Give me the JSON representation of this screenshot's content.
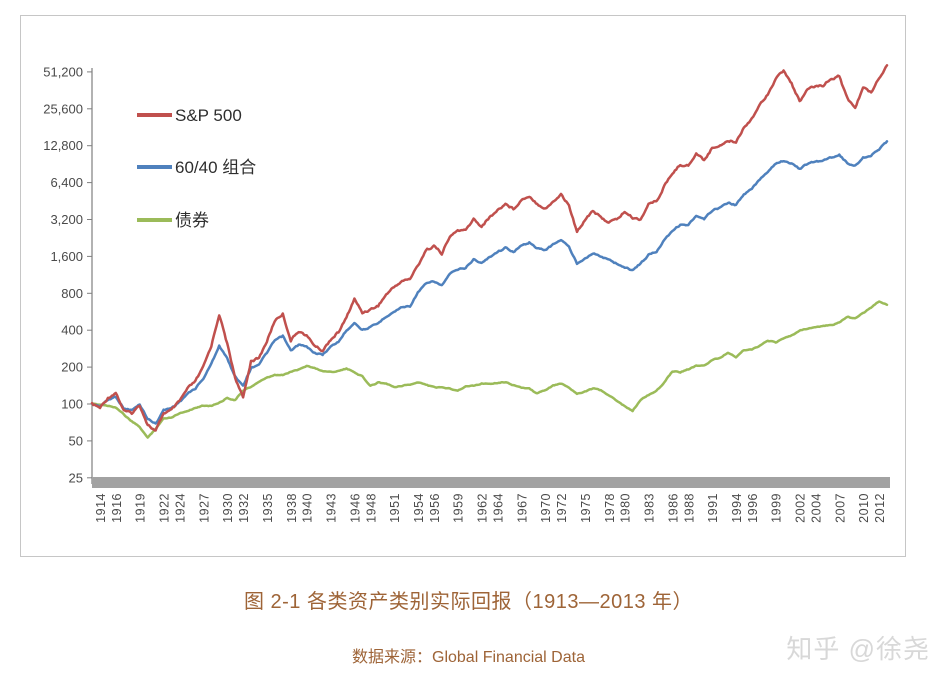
{
  "figure": {
    "title": "图 2-1 各类资产类别实际回报（1913—2013 年）",
    "source": "数据来源：Global Financial Data",
    "watermark": "知乎 @徐尧",
    "text_color": "#9E6437",
    "watermark_color": "#D8D8D8"
  },
  "chart_data": {
    "type": "line",
    "title": "各类资产类别实际回报 (1913—2013)",
    "y_scale": "log2",
    "ylim": [
      25,
      102400
    ],
    "grid": false,
    "legend_position": "upper-left-inside",
    "x_start": 1913,
    "x_end": 2013,
    "x_step": 1,
    "colors": {
      "axis": "#7f7f7f",
      "x_axis_bar": "#A2A2A2"
    },
    "y_ticks": [
      {
        "value": 51200,
        "label": "51,200"
      },
      {
        "value": 25600,
        "label": "25,600"
      },
      {
        "value": 12800,
        "label": "12,800"
      },
      {
        "value": 6400,
        "label": "6,400"
      },
      {
        "value": 3200,
        "label": "3,200"
      },
      {
        "value": 1600,
        "label": "1,600"
      },
      {
        "value": 800,
        "label": "800"
      },
      {
        "value": 400,
        "label": "400"
      },
      {
        "value": 200,
        "label": "200"
      },
      {
        "value": 100,
        "label": "100"
      },
      {
        "value": 50,
        "label": "50"
      },
      {
        "value": 25,
        "label": "25"
      }
    ],
    "x_ticks": [
      1914,
      1916,
      1919,
      1922,
      1924,
      1927,
      1930,
      1932,
      1935,
      1938,
      1940,
      1943,
      1946,
      1948,
      1951,
      1954,
      1956,
      1959,
      1962,
      1964,
      1967,
      1970,
      1972,
      1975,
      1978,
      1980,
      1983,
      1986,
      1988,
      1991,
      1994,
      1996,
      1999,
      2002,
      2004,
      2007,
      2010,
      2012
    ],
    "series": [
      {
        "id": "sp500",
        "name": "S&P 500",
        "color": "#C0504D",
        "values": [
          100,
          93,
          112,
          124,
          88,
          84,
          98,
          68,
          60,
          84,
          89,
          105,
          133,
          153,
          200,
          298,
          540,
          310,
          165,
          112,
          225,
          236,
          325,
          480,
          545,
          330,
          395,
          360,
          300,
          272,
          335,
          385,
          505,
          720,
          555,
          590,
          635,
          780,
          905,
          1005,
          1050,
          1350,
          1800,
          1950,
          1690,
          2300,
          2610,
          2600,
          3220,
          2810,
          3320,
          3800,
          4300,
          3900,
          4620,
          5000,
          4300,
          3950,
          4420,
          5150,
          4150,
          2520,
          3200,
          3800,
          3300,
          3050,
          3200,
          3700,
          3300,
          3200,
          4300,
          4500,
          6000,
          7600,
          9000,
          8800,
          11000,
          9800,
          12200,
          13000,
          14000,
          13800,
          18000,
          21500,
          27500,
          34000,
          45000,
          52500,
          41000,
          29500,
          36500,
          39000,
          40000,
          45000,
          47500,
          31000,
          26000,
          38000,
          35000,
          46000,
          58000
        ]
      },
      {
        "id": "portfolio-60-40",
        "name": "60/40 组合",
        "color": "#4F81BD",
        "values": [
          100,
          96,
          108,
          115,
          92,
          89,
          99,
          76,
          69,
          89,
          93,
          104,
          121,
          134,
          161,
          212,
          300,
          235,
          168,
          142,
          196,
          212,
          262,
          330,
          358,
          272,
          305,
          292,
          262,
          252,
          292,
          322,
          398,
          462,
          402,
          422,
          455,
          520,
          565,
          618,
          628,
          815,
          955,
          1000,
          925,
          1150,
          1245,
          1290,
          1520,
          1405,
          1580,
          1745,
          1880,
          1750,
          1945,
          2090,
          1850,
          1805,
          2000,
          2195,
          1905,
          1400,
          1550,
          1700,
          1600,
          1500,
          1400,
          1300,
          1240,
          1400,
          1650,
          1750,
          2200,
          2600,
          2900,
          2900,
          3400,
          3200,
          3800,
          4000,
          4400,
          4200,
          5100,
          5700,
          6800,
          7900,
          9200,
          9700,
          9100,
          8300,
          9100,
          9500,
          9700,
          10300,
          10800,
          9200,
          8800,
          10200,
          10700,
          11900,
          13900
        ]
      },
      {
        "id": "bonds",
        "name": "债券",
        "color": "#9BBB59",
        "values": [
          100,
          99,
          97,
          94,
          82,
          72,
          65,
          53,
          63,
          76,
          78,
          84,
          88,
          93,
          97,
          97,
          102,
          112,
          108,
          128,
          138,
          152,
          163,
          172,
          172,
          183,
          192,
          205,
          196,
          186,
          183,
          186,
          194,
          182,
          168,
          140,
          150,
          147,
          138,
          141,
          144,
          150,
          144,
          137,
          136,
          134,
          129,
          139,
          141,
          147,
          147,
          149,
          151,
          143,
          136,
          133,
          122,
          130,
          141,
          147,
          136,
          122,
          126,
          134,
          129,
          118,
          106,
          96,
          88,
          108,
          118,
          128,
          150,
          185,
          182,
          192,
          205,
          205,
          228,
          238,
          262,
          242,
          275,
          278,
          300,
          330,
          318,
          342,
          362,
          395,
          412,
          425,
          432,
          440,
          462,
          512,
          500,
          552,
          615,
          688,
          645
        ]
      }
    ]
  }
}
